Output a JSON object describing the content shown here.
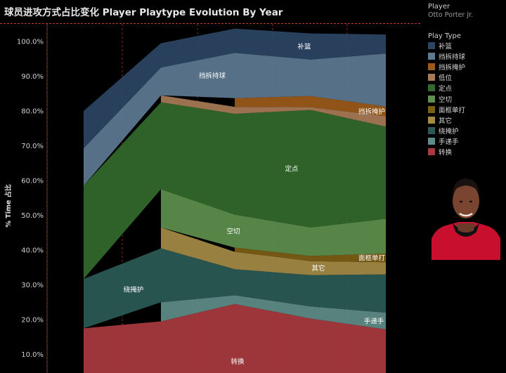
{
  "title": "球员进攻方式占比变化 Player Playtype Evolution By Year",
  "player": {
    "label": "Player",
    "name": "Otto Porter Jr."
  },
  "legend": {
    "title": "Play Type"
  },
  "colors": {
    "background": "#000000",
    "accent_line": "#c0392b"
  },
  "chart_data": {
    "type": "area",
    "ylabel": "% Time 占比",
    "ylim": [
      0,
      1.0
    ],
    "yticks": [
      "10.0%",
      "20.0%",
      "30.0%",
      "40.0%",
      "50.0%",
      "60.0%",
      "70.0%",
      "80.0%",
      "90.0%",
      "100.0%"
    ],
    "grid": false,
    "legend_position": "right",
    "x": [
      0,
      1,
      2,
      3,
      4
    ],
    "series": [
      {
        "name": "转换",
        "color": "#a83a3f",
        "values": [
          0.175,
          0.195,
          0.245,
          0.203,
          0.172
        ]
      },
      {
        "name": "手递手",
        "color": "#5f8c88",
        "values": [
          null,
          0.055,
          0.025,
          0.035,
          0.048
        ]
      },
      {
        "name": "绕掩护",
        "color": "#2b5a56",
        "values": [
          0.142,
          0.155,
          0.075,
          0.09,
          0.11
        ]
      },
      {
        "name": "其它",
        "color": "#a48a45",
        "values": [
          null,
          0.06,
          0.05,
          0.04,
          0.035
        ]
      },
      {
        "name": "面框单打",
        "color": "#7c5e14",
        "values": [
          null,
          null,
          0.012,
          0.015,
          0.025
        ]
      },
      {
        "name": "空切",
        "color": "#5e8f4d",
        "values": [
          null,
          0.11,
          0.095,
          0.082,
          0.1
        ]
      },
      {
        "name": "定点",
        "color": "#33692c",
        "values": [
          0.268,
          0.25,
          0.29,
          0.338,
          0.265
        ]
      },
      {
        "name": "低位",
        "color": "#a77a56",
        "values": [
          null,
          0.02,
          0.02,
          0.008,
          0.03
        ]
      },
      {
        "name": "挡拆掩护",
        "color": "#9b5a1b",
        "values": [
          null,
          null,
          0.025,
          0.032,
          0.028
        ]
      },
      {
        "name": "挡拆持球",
        "color": "#5d7a91",
        "values": [
          0.108,
          0.08,
          0.13,
          0.105,
          0.152
        ]
      },
      {
        "name": "补篮",
        "color": "#2c4563",
        "values": [
          0.107,
          0.07,
          0.07,
          0.075,
          0.055
        ]
      }
    ],
    "area_labels": [
      {
        "series": "补篮",
        "text": "补篮"
      },
      {
        "series": "挡拆持球",
        "text": "挡拆持球"
      },
      {
        "series": "挡拆掩护",
        "text": "挡拆掩护"
      },
      {
        "series": "定点",
        "text": "定点"
      },
      {
        "series": "空切",
        "text": "空切"
      },
      {
        "series": "面框单打",
        "text": "面框单打"
      },
      {
        "series": "其它",
        "text": "其它"
      },
      {
        "series": "绕掩护",
        "text": "绕掩护"
      },
      {
        "series": "手递手",
        "text": "手递手"
      },
      {
        "series": "转换",
        "text": "转换"
      }
    ]
  }
}
